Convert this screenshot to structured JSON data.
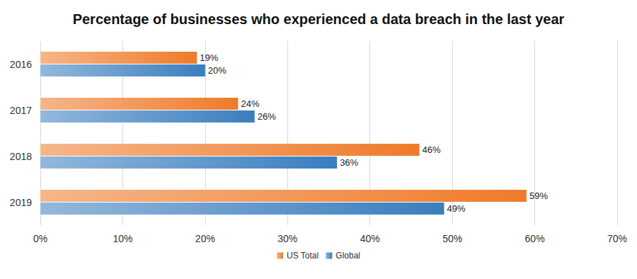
{
  "chart_data": {
    "type": "bar",
    "title": "Percentage of businesses who experienced a data breach in the last year",
    "orientation": "horizontal",
    "categories": [
      "2016",
      "2017",
      "2018",
      "2019"
    ],
    "series": [
      {
        "name": "US Total",
        "color": "#ef7b2a",
        "values": [
          19,
          24,
          46,
          59
        ],
        "value_labels": [
          "19%",
          "24%",
          "46%",
          "59%"
        ]
      },
      {
        "name": "Global",
        "color": "#3a7ebf",
        "values": [
          20,
          26,
          36,
          49
        ],
        "value_labels": [
          "20%",
          "26%",
          "36%",
          "49%"
        ]
      }
    ],
    "xlim": [
      0,
      70
    ],
    "xticks": [
      {
        "value": 0,
        "label": "0%"
      },
      {
        "value": 10,
        "label": "10%"
      },
      {
        "value": 20,
        "label": "20%"
      },
      {
        "value": 30,
        "label": "30%"
      },
      {
        "value": 40,
        "label": "40%"
      },
      {
        "value": 50,
        "label": "50%"
      },
      {
        "value": 60,
        "label": "60%"
      },
      {
        "value": 70,
        "label": "70%"
      }
    ],
    "grid": true,
    "legend": "bottom",
    "data_labels": true
  }
}
